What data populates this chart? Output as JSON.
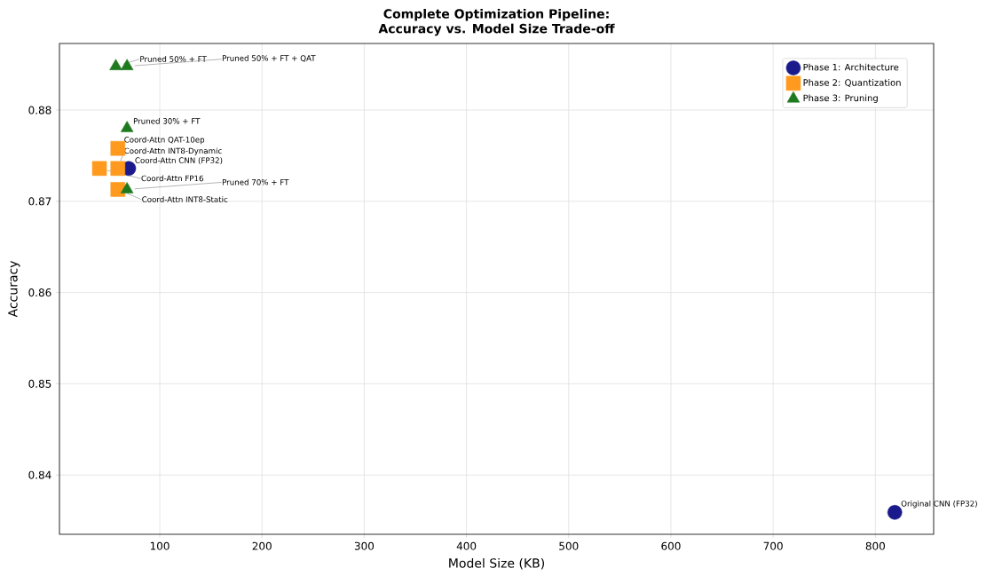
{
  "chart_data": {
    "type": "scatter",
    "title": "Complete Optimization Pipeline:",
    "subtitle": "Accuracy vs. Model Size Trade-off",
    "xlabel": "Model Size (KB)",
    "ylabel": "Accuracy",
    "xlim": [
      1.9,
      857
    ],
    "ylim": [
      0.8335,
      0.8873
    ],
    "xticks": [
      100,
      200,
      300,
      400,
      500,
      600,
      700,
      800
    ],
    "yticks": [
      0.84,
      0.85,
      0.86,
      0.87,
      0.88
    ],
    "grid": true,
    "legend": "top right",
    "series": [
      {
        "name": "Phase 1: Architecture",
        "color": "#1a1a8c",
        "marker": "circle",
        "x": [
          819,
          69.6
        ],
        "values": [
          0.8359,
          0.8736
        ]
      },
      {
        "name": "Phase 2: Quantization",
        "color": "#ff9a1f",
        "marker": "square",
        "x": [
          59,
          41,
          59,
          59
        ],
        "values": [
          0.8758,
          0.8736,
          0.8736,
          0.8713
        ]
      },
      {
        "name": "Phase 3: Pruning",
        "color": "#1f7a1f",
        "marker": "triangle",
        "x": [
          57,
          68,
          68,
          68
        ],
        "values": [
          0.8848,
          0.8848,
          0.878,
          0.8713
        ]
      }
    ],
    "annotations": [
      {
        "text": "Original CNN (FP32)",
        "x": 819,
        "y": 0.8359
      },
      {
        "text": "Coord-Attn CNN (FP32)",
        "x": 69.6,
        "y": 0.8736
      },
      {
        "text": "Coord-Attn QAT-10ep",
        "x": 59,
        "y": 0.8758
      },
      {
        "text": "Coord-Attn FP16",
        "x": 41,
        "y": 0.8736
      },
      {
        "text": "Coord-Attn INT8-Dynamic",
        "x": 59,
        "y": 0.8736
      },
      {
        "text": "Coord-Attn INT8-Static",
        "x": 59,
        "y": 0.8713
      },
      {
        "text": "Pruned 50% + FT",
        "x": 57,
        "y": 0.8848
      },
      {
        "text": "Pruned 50% + FT + QAT",
        "x": 68,
        "y": 0.8848
      },
      {
        "text": "Pruned 30% + FT",
        "x": 68,
        "y": 0.878
      },
      {
        "text": "Pruned 70% + FT",
        "x": 68,
        "y": 0.8713
      }
    ]
  }
}
